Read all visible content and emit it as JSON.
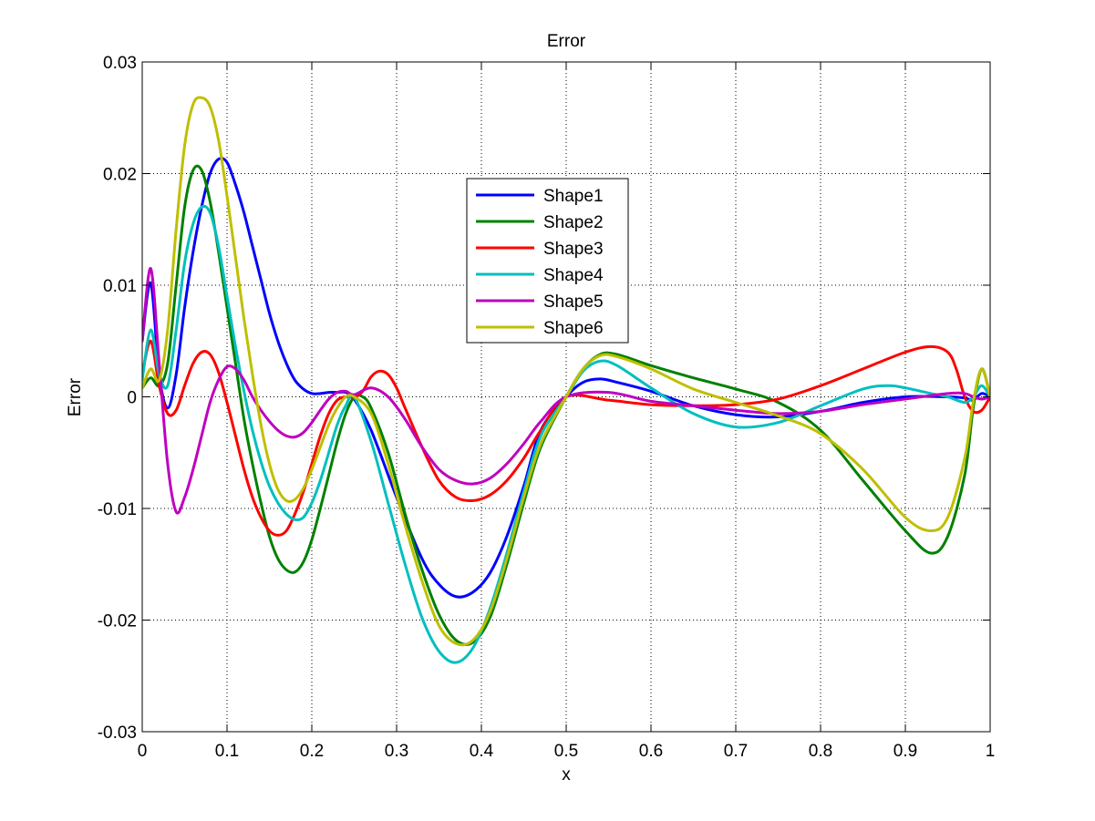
{
  "chart_data": {
    "type": "line",
    "title": "Error",
    "xlabel": "x",
    "ylabel": "Error",
    "xlim": [
      0,
      1
    ],
    "ylim": [
      -0.03,
      0.03
    ],
    "xticks": [
      0,
      0.1,
      0.2,
      0.3,
      0.4,
      0.5,
      0.6,
      0.7,
      0.8,
      0.9,
      1
    ],
    "xtick_labels": [
      "0",
      "0.1",
      "0.2",
      "0.3",
      "0.4",
      "0.5",
      "0.6",
      "0.7",
      "0.8",
      "0.9",
      "1"
    ],
    "yticks": [
      -0.03,
      -0.02,
      -0.01,
      0,
      0.01,
      0.02,
      0.03
    ],
    "ytick_labels": [
      "-0.03",
      "-0.02",
      "-0.01",
      "0",
      "0.01",
      "0.02",
      "0.03"
    ],
    "grid": true,
    "legend_position": "center-top",
    "series": [
      {
        "name": "Shape1",
        "color": "#0000ff",
        "x": [
          0,
          0.01,
          0.02,
          0.03,
          0.04,
          0.05,
          0.06,
          0.07,
          0.08,
          0.09,
          0.1,
          0.11,
          0.12,
          0.13,
          0.14,
          0.15,
          0.16,
          0.17,
          0.18,
          0.19,
          0.2,
          0.21,
          0.22,
          0.23,
          0.24,
          0.25,
          0.27,
          0.3,
          0.33,
          0.35,
          0.37,
          0.39,
          0.41,
          0.43,
          0.45,
          0.47,
          0.5,
          0.52,
          0.54,
          0.56,
          0.6,
          0.65,
          0.7,
          0.75,
          0.8,
          0.85,
          0.9,
          0.95,
          0.97,
          0.98,
          0.99,
          1
        ],
        "values": [
          0.005,
          0.0102,
          0.002,
          -0.001,
          0.002,
          0.008,
          0.013,
          0.017,
          0.02,
          0.0213,
          0.021,
          0.019,
          0.0165,
          0.0135,
          0.0105,
          0.0075,
          0.005,
          0.003,
          0.0015,
          0.0007,
          0.0003,
          0.0003,
          0.0004,
          0.0004,
          0.0004,
          -0.0002,
          -0.003,
          -0.009,
          -0.0145,
          -0.0168,
          -0.0179,
          -0.0175,
          -0.0158,
          -0.0125,
          -0.008,
          -0.003,
          0,
          0.0013,
          0.0016,
          0.0013,
          0.0005,
          -0.0008,
          -0.0016,
          -0.0018,
          -0.0013,
          -0.0005,
          0,
          0,
          -0.0001,
          -0.0003,
          0.0003,
          0
        ]
      },
      {
        "name": "Shape2",
        "color": "#008000",
        "x": [
          0,
          0.01,
          0.02,
          0.03,
          0.04,
          0.05,
          0.06,
          0.07,
          0.08,
          0.09,
          0.1,
          0.11,
          0.12,
          0.13,
          0.14,
          0.15,
          0.16,
          0.17,
          0.18,
          0.19,
          0.2,
          0.21,
          0.22,
          0.23,
          0.24,
          0.25,
          0.26,
          0.27,
          0.29,
          0.31,
          0.33,
          0.35,
          0.37,
          0.39,
          0.41,
          0.43,
          0.45,
          0.47,
          0.5,
          0.52,
          0.54,
          0.56,
          0.6,
          0.65,
          0.7,
          0.75,
          0.8,
          0.85,
          0.9,
          0.93,
          0.95,
          0.97,
          0.98,
          0.99,
          1
        ],
        "values": [
          0.0008,
          0.0017,
          0.001,
          0.003,
          0.01,
          0.017,
          0.0203,
          0.0203,
          0.0175,
          0.013,
          0.008,
          0.003,
          -0.002,
          -0.006,
          -0.0095,
          -0.0125,
          -0.0145,
          -0.0155,
          -0.0157,
          -0.0148,
          -0.0128,
          -0.01,
          -0.007,
          -0.004,
          -0.0015,
          0,
          0,
          -0.001,
          -0.005,
          -0.0105,
          -0.0155,
          -0.0195,
          -0.0218,
          -0.022,
          -0.0198,
          -0.015,
          -0.0095,
          -0.0045,
          0,
          0.0025,
          0.0038,
          0.0038,
          0.0028,
          0.0017,
          0.0007,
          -0.0005,
          -0.003,
          -0.0075,
          -0.012,
          -0.014,
          -0.0125,
          -0.007,
          -0.001,
          0.0025,
          0
        ]
      },
      {
        "name": "Shape3",
        "color": "#ff0000",
        "x": [
          0,
          0.01,
          0.02,
          0.03,
          0.04,
          0.05,
          0.06,
          0.07,
          0.08,
          0.09,
          0.1,
          0.11,
          0.12,
          0.13,
          0.14,
          0.15,
          0.16,
          0.17,
          0.18,
          0.19,
          0.2,
          0.21,
          0.22,
          0.23,
          0.24,
          0.25,
          0.26,
          0.27,
          0.28,
          0.29,
          0.3,
          0.31,
          0.33,
          0.35,
          0.37,
          0.39,
          0.41,
          0.43,
          0.45,
          0.47,
          0.5,
          0.55,
          0.6,
          0.65,
          0.7,
          0.75,
          0.8,
          0.85,
          0.9,
          0.93,
          0.95,
          0.96,
          0.97,
          0.98,
          0.99,
          1
        ],
        "values": [
          0.002,
          0.005,
          0.001,
          -0.0015,
          -0.0012,
          0.001,
          0.003,
          0.004,
          0.0038,
          0.0022,
          -0.0005,
          -0.0035,
          -0.0065,
          -0.009,
          -0.0108,
          -0.012,
          -0.0124,
          -0.012,
          -0.0105,
          -0.0085,
          -0.006,
          -0.0035,
          -0.0015,
          -0.0003,
          0,
          0,
          0.0005,
          0.0018,
          0.0023,
          0.002,
          0.0008,
          -0.001,
          -0.0045,
          -0.0075,
          -0.009,
          -0.0093,
          -0.0088,
          -0.0075,
          -0.0055,
          -0.003,
          0,
          -0.0003,
          -0.0007,
          -0.0008,
          -0.0007,
          -0.0002,
          0.001,
          0.0025,
          0.004,
          0.0045,
          0.004,
          0.0025,
          0,
          -0.0013,
          -0.0012,
          0
        ]
      },
      {
        "name": "Shape4",
        "color": "#00bfbf",
        "x": [
          0,
          0.01,
          0.02,
          0.03,
          0.04,
          0.05,
          0.06,
          0.07,
          0.08,
          0.09,
          0.1,
          0.11,
          0.12,
          0.13,
          0.14,
          0.15,
          0.16,
          0.17,
          0.18,
          0.19,
          0.2,
          0.21,
          0.22,
          0.23,
          0.24,
          0.25,
          0.27,
          0.29,
          0.31,
          0.33,
          0.35,
          0.37,
          0.39,
          0.41,
          0.43,
          0.45,
          0.47,
          0.5,
          0.52,
          0.54,
          0.56,
          0.6,
          0.65,
          0.7,
          0.75,
          0.8,
          0.85,
          0.88,
          0.9,
          0.93,
          0.95,
          0.97,
          0.98,
          0.99,
          1
        ],
        "values": [
          0.0015,
          0.006,
          0.002,
          0.001,
          0.006,
          0.012,
          0.0155,
          0.017,
          0.0165,
          0.0135,
          0.009,
          0.0045,
          0.0005,
          -0.003,
          -0.0058,
          -0.008,
          -0.0095,
          -0.0105,
          -0.011,
          -0.0108,
          -0.0095,
          -0.0075,
          -0.005,
          -0.0025,
          -0.0008,
          0,
          -0.004,
          -0.0095,
          -0.015,
          -0.0198,
          -0.0228,
          -0.0238,
          -0.0225,
          -0.019,
          -0.014,
          -0.0085,
          -0.0035,
          0,
          0.0023,
          0.0032,
          0.0028,
          0.0008,
          -0.0015,
          -0.0027,
          -0.0023,
          -0.0008,
          0.0007,
          0.001,
          0.0008,
          0.0003,
          0,
          -0.0005,
          0,
          0.001,
          0
        ]
      },
      {
        "name": "Shape5",
        "color": "#bf00bf",
        "x": [
          0,
          0.01,
          0.02,
          0.03,
          0.04,
          0.05,
          0.06,
          0.07,
          0.08,
          0.09,
          0.1,
          0.11,
          0.12,
          0.13,
          0.14,
          0.15,
          0.16,
          0.17,
          0.18,
          0.19,
          0.2,
          0.21,
          0.22,
          0.23,
          0.24,
          0.25,
          0.27,
          0.29,
          0.31,
          0.33,
          0.35,
          0.37,
          0.39,
          0.41,
          0.43,
          0.45,
          0.47,
          0.5,
          0.55,
          0.6,
          0.65,
          0.7,
          0.75,
          0.8,
          0.85,
          0.9,
          0.95,
          0.97,
          0.98,
          0.99,
          1
        ],
        "values": [
          0.005,
          0.0115,
          0.003,
          -0.006,
          -0.0103,
          -0.009,
          -0.0065,
          -0.0035,
          -0.0005,
          0.0015,
          0.0027,
          0.0025,
          0.0015,
          0,
          -0.0012,
          -0.0022,
          -0.003,
          -0.0035,
          -0.0036,
          -0.0032,
          -0.0023,
          -0.0012,
          -0.0002,
          0.0004,
          0.0005,
          0.0002,
          0.0008,
          0,
          -0.002,
          -0.0045,
          -0.0065,
          -0.0075,
          -0.0078,
          -0.0073,
          -0.006,
          -0.0042,
          -0.0022,
          0,
          0.0004,
          -0.0004,
          -0.0008,
          -0.0012,
          -0.0015,
          -0.0013,
          -0.0007,
          -0.0002,
          0.0003,
          0.0003,
          0,
          -0.0002,
          0
        ]
      },
      {
        "name": "Shape6",
        "color": "#bfbf00",
        "x": [
          0,
          0.01,
          0.02,
          0.03,
          0.04,
          0.05,
          0.06,
          0.07,
          0.08,
          0.09,
          0.1,
          0.11,
          0.12,
          0.13,
          0.14,
          0.15,
          0.16,
          0.17,
          0.18,
          0.19,
          0.2,
          0.21,
          0.22,
          0.23,
          0.24,
          0.25,
          0.27,
          0.29,
          0.31,
          0.33,
          0.35,
          0.37,
          0.39,
          0.41,
          0.43,
          0.45,
          0.47,
          0.5,
          0.52,
          0.54,
          0.56,
          0.6,
          0.65,
          0.7,
          0.75,
          0.8,
          0.85,
          0.9,
          0.93,
          0.95,
          0.97,
          0.98,
          0.99,
          1
        ],
        "values": [
          0.0008,
          0.0025,
          0.0015,
          0.006,
          0.015,
          0.0225,
          0.0262,
          0.0268,
          0.026,
          0.023,
          0.018,
          0.0125,
          0.007,
          0.002,
          -0.0025,
          -0.006,
          -0.0083,
          -0.0093,
          -0.0092,
          -0.0082,
          -0.0065,
          -0.0045,
          -0.0025,
          -0.001,
          0,
          0,
          -0.0015,
          -0.006,
          -0.0115,
          -0.0165,
          -0.0205,
          -0.0221,
          -0.0218,
          -0.0193,
          -0.0145,
          -0.009,
          -0.0042,
          0,
          0.0025,
          0.0037,
          0.0036,
          0.0025,
          0.0007,
          -0.0005,
          -0.0017,
          -0.0033,
          -0.0065,
          -0.0108,
          -0.012,
          -0.0108,
          -0.0055,
          -0.0005,
          0.0025,
          0
        ]
      }
    ]
  }
}
